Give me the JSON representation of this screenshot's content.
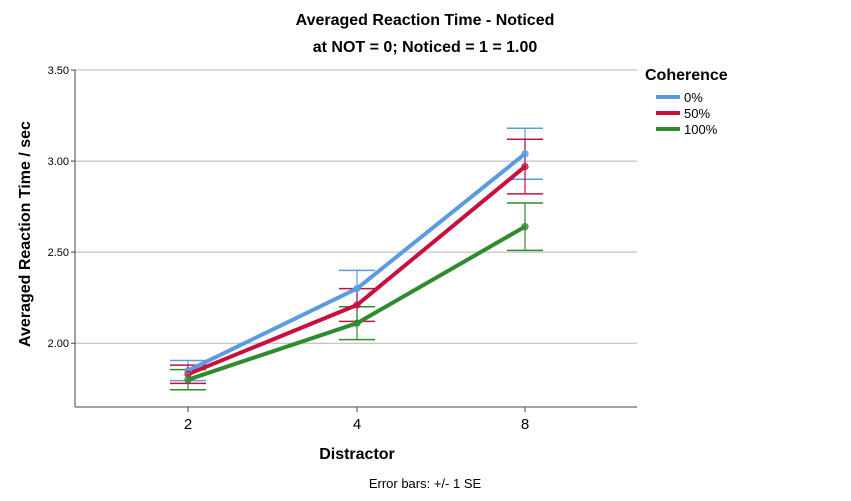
{
  "chart_data": {
    "type": "line",
    "title": "Averaged Reaction Time - Noticed",
    "subtitle": "at NOT = 0; Noticed = 1 = 1.00",
    "xlabel": "Distractor",
    "ylabel": "Averaged Reaction Time / sec",
    "categories": [
      "2",
      "4",
      "8"
    ],
    "ylim": [
      1.65,
      3.5
    ],
    "yticks": [
      "2.00",
      "2.50",
      "3.00",
      "3.50"
    ],
    "grid": true,
    "legend": {
      "title": "Coherence",
      "placement": "top-right"
    },
    "footnote": "Error bars: +/- 1 SE",
    "series": [
      {
        "name": "0%",
        "color": "#5b9bdf",
        "values": [
          1.85,
          2.3,
          3.04
        ],
        "se": [
          0.055,
          0.1,
          0.14
        ]
      },
      {
        "name": "50%",
        "color": "#c8103e",
        "values": [
          1.83,
          2.21,
          2.97
        ],
        "se": [
          0.05,
          0.09,
          0.15
        ]
      },
      {
        "name": "100%",
        "color": "#2e8b2e",
        "values": [
          1.8,
          2.11,
          2.64
        ],
        "se": [
          0.055,
          0.09,
          0.13
        ]
      }
    ]
  }
}
